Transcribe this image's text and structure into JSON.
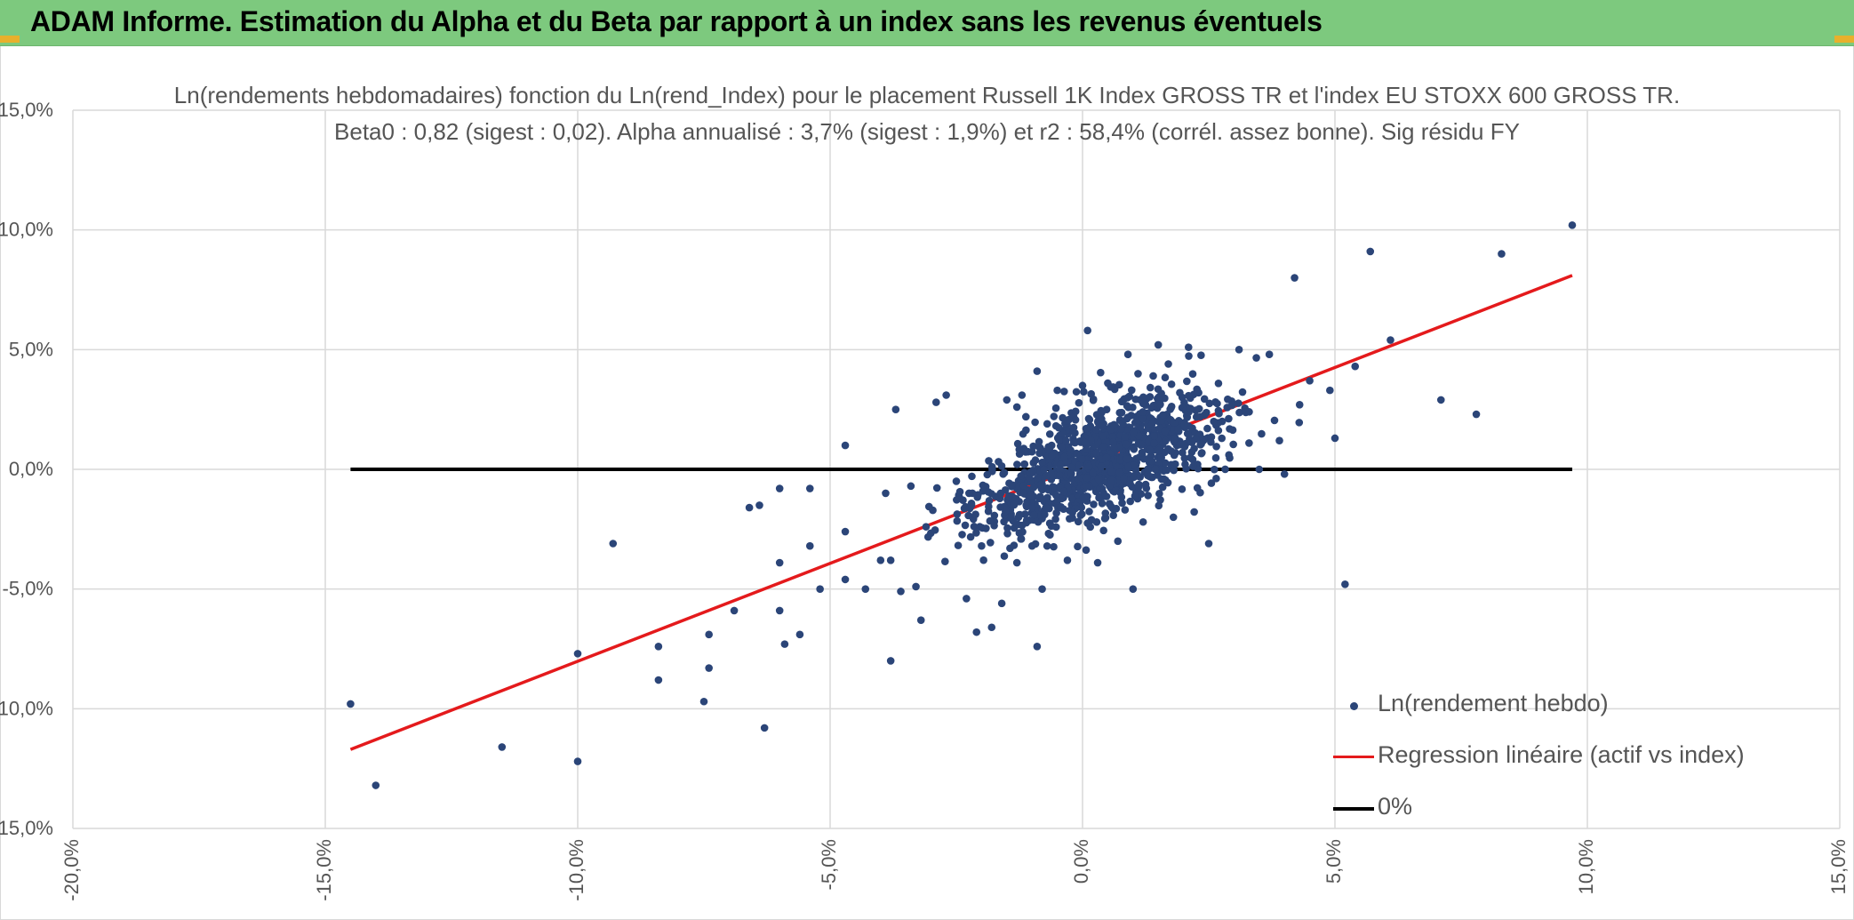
{
  "banner": {
    "title": "ADAM Informe. Estimation du Alpha et du Beta par rapport à un index sans les revenus éventuels",
    "color": "#7dc97e"
  },
  "chart_data": {
    "type": "scatter",
    "title": "Ln(rendements hebdomadaires) fonction du Ln(rend_Index) pour le placement Russell 1K Index GROSS TR et l'index EU STOXX 600 GROSS TR.",
    "subtitle": "Beta0 : 0,82 (sigest : 0,02). Alpha annualisé : 3,7% (sigest : 1,9%) et r2 : 58,4% (corrél. assez bonne). Sig résidu FY",
    "xlim": [
      -20,
      15
    ],
    "ylim": [
      -15,
      15
    ],
    "x_ticks": [
      "-20,0%",
      "-15,0%",
      "-10,0%",
      "-5,0%",
      "0,0%",
      "5,0%",
      "10,0%",
      "15,0%"
    ],
    "y_ticks": [
      "15,0%",
      "10,0%",
      "5,0%",
      "0,0%",
      "-5,0%",
      "-10,0%",
      "-15,0%"
    ],
    "grid": true,
    "legend_position": "bottom-right",
    "series": [
      {
        "name": "Ln(rendement hebdo)",
        "kind": "scatter",
        "color": "#2b4578",
        "points": [
          [
            -14.5,
            -9.8
          ],
          [
            -14.0,
            -13.2
          ],
          [
            -11.5,
            -11.6
          ],
          [
            -10.0,
            -12.2
          ],
          [
            -10.0,
            -7.7
          ],
          [
            -9.3,
            -3.1
          ],
          [
            -8.4,
            -7.4
          ],
          [
            -8.4,
            -8.8
          ],
          [
            -7.5,
            -9.7
          ],
          [
            -7.4,
            -6.9
          ],
          [
            -7.4,
            -8.3
          ],
          [
            -6.9,
            -5.9
          ],
          [
            -6.6,
            -1.6
          ],
          [
            -6.4,
            -1.5
          ],
          [
            -6.3,
            -10.8
          ],
          [
            -6.0,
            -0.8
          ],
          [
            -6.0,
            -3.9
          ],
          [
            -6.0,
            -5.9
          ],
          [
            -5.9,
            -7.3
          ],
          [
            -5.6,
            -6.9
          ],
          [
            -5.4,
            -0.8
          ],
          [
            -5.4,
            -3.2
          ],
          [
            -5.2,
            -5.0
          ],
          [
            -4.7,
            -2.6
          ],
          [
            -4.7,
            -4.6
          ],
          [
            -4.7,
            1.0
          ],
          [
            -4.3,
            -5.0
          ],
          [
            -4.0,
            -3.8
          ],
          [
            -3.9,
            -1.0
          ],
          [
            -3.8,
            -8.0
          ],
          [
            -3.8,
            -3.8
          ],
          [
            -3.7,
            2.5
          ],
          [
            -3.6,
            -5.1
          ],
          [
            -3.4,
            -0.7
          ],
          [
            -3.3,
            -4.9
          ],
          [
            -3.2,
            -6.3
          ],
          [
            -3.1,
            -2.4
          ],
          [
            -2.9,
            2.8
          ],
          [
            -2.7,
            3.1
          ],
          [
            -2.5,
            -0.5
          ],
          [
            -2.3,
            -5.4
          ],
          [
            -2.2,
            -1.5
          ],
          [
            -2.1,
            -6.8
          ],
          [
            -2.0,
            -3.2
          ],
          [
            -1.8,
            -6.6
          ],
          [
            -1.6,
            -5.6
          ],
          [
            -1.5,
            2.9
          ],
          [
            -1.3,
            2.6
          ],
          [
            -1.3,
            -3.9
          ],
          [
            -1.2,
            3.1
          ],
          [
            -1.0,
            -1.6
          ],
          [
            -1.0,
            -3.2
          ],
          [
            -0.9,
            -7.4
          ],
          [
            -0.9,
            4.1
          ],
          [
            -0.8,
            -5.0
          ],
          [
            -0.7,
            1.9
          ],
          [
            -0.5,
            3.3
          ],
          [
            -0.4,
            1.5
          ],
          [
            -0.3,
            -3.8
          ],
          [
            -0.2,
            -1.8
          ],
          [
            0.0,
            3.5
          ],
          [
            0.1,
            5.8
          ],
          [
            0.3,
            -3.9
          ],
          [
            0.5,
            3.6
          ],
          [
            0.7,
            -3.0
          ],
          [
            0.8,
            1.9
          ],
          [
            0.9,
            4.8
          ],
          [
            1.0,
            -5.0
          ],
          [
            1.2,
            -2.2
          ],
          [
            1.4,
            3.9
          ],
          [
            1.5,
            5.2
          ],
          [
            1.7,
            4.4
          ],
          [
            1.8,
            -2.0
          ],
          [
            2.0,
            1.0
          ],
          [
            2.1,
            5.1
          ],
          [
            2.3,
            3.2
          ],
          [
            2.5,
            -3.1
          ],
          [
            2.6,
            2.0
          ],
          [
            2.9,
            0.6
          ],
          [
            3.1,
            5.0
          ],
          [
            3.3,
            2.4
          ],
          [
            3.5,
            0.0
          ],
          [
            3.7,
            4.8
          ],
          [
            3.9,
            1.2
          ],
          [
            4.0,
            -0.2
          ],
          [
            4.2,
            8.0
          ],
          [
            4.3,
            2.7
          ],
          [
            4.5,
            3.7
          ],
          [
            4.9,
            3.3
          ],
          [
            5.0,
            1.3
          ],
          [
            5.2,
            -4.8
          ],
          [
            5.4,
            4.3
          ],
          [
            5.7,
            9.1
          ],
          [
            6.1,
            5.4
          ],
          [
            7.1,
            2.9
          ],
          [
            7.8,
            2.3
          ],
          [
            8.3,
            9.0
          ],
          [
            9.7,
            10.2
          ]
        ]
      },
      {
        "name": "Regression linéaire (actif vs index)",
        "kind": "line",
        "color": "#e41a1c",
        "points": [
          [
            -14.5,
            -11.7
          ],
          [
            9.7,
            8.1
          ]
        ]
      },
      {
        "name": "0%",
        "kind": "line",
        "color": "#000000",
        "points": [
          [
            -14.5,
            0.0
          ],
          [
            9.7,
            0.0
          ]
        ]
      }
    ]
  }
}
